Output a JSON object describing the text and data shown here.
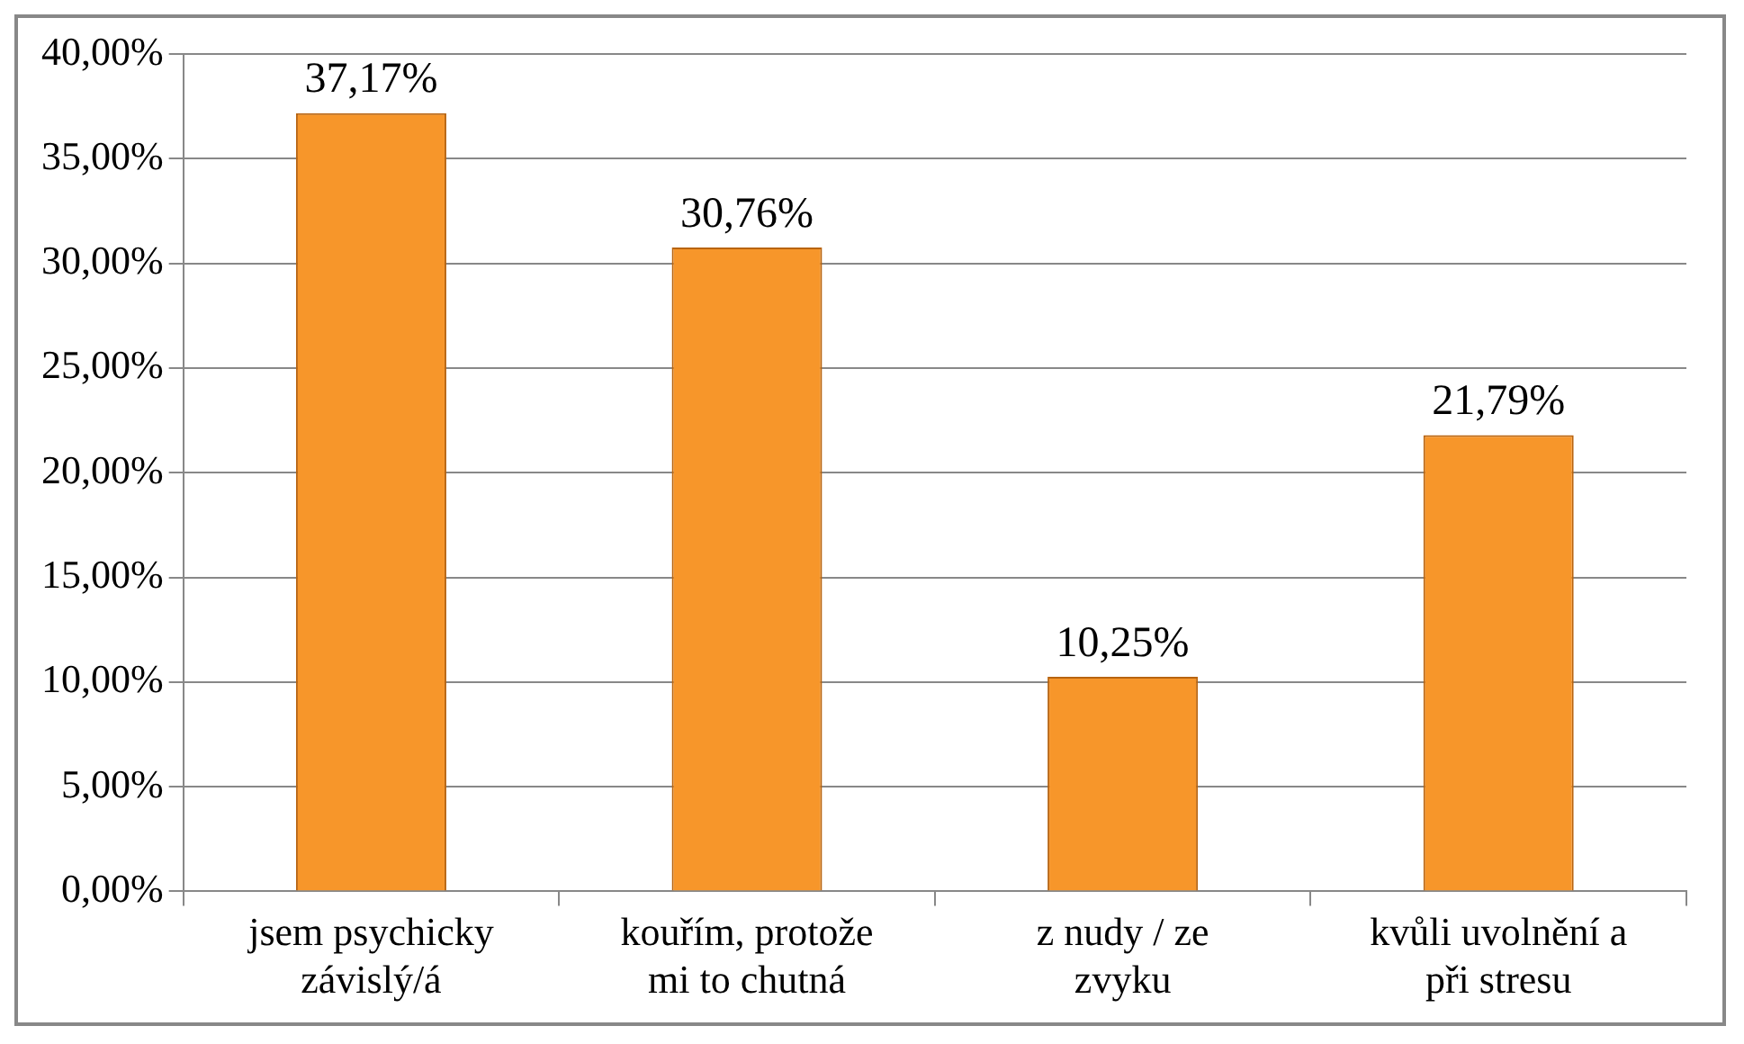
{
  "chart_data": {
    "type": "bar",
    "categories": [
      "jsem psychicky závislý/á",
      "kouřím, protože mi to chutná",
      "z nudy / ze zvyku",
      "kvůli uvolnění a při stresu"
    ],
    "values": [
      37.17,
      30.76,
      10.25,
      21.79
    ],
    "value_labels": [
      "37,17%",
      "30,76%",
      "10,25%",
      "21,79%"
    ],
    "color": "#f7962a",
    "ylim": [
      0,
      40
    ],
    "yticks": [
      {
        "value": 0,
        "label": "0,00%"
      },
      {
        "value": 5,
        "label": "5,00%"
      },
      {
        "value": 10,
        "label": "10,00%"
      },
      {
        "value": 15,
        "label": "15,00%"
      },
      {
        "value": 20,
        "label": "20,00%"
      },
      {
        "value": 25,
        "label": "25,00%"
      },
      {
        "value": 30,
        "label": "30,00%"
      },
      {
        "value": 35,
        "label": "35,00%"
      },
      {
        "value": 40,
        "label": "40,00%"
      }
    ],
    "grid": "y",
    "legend": false
  }
}
